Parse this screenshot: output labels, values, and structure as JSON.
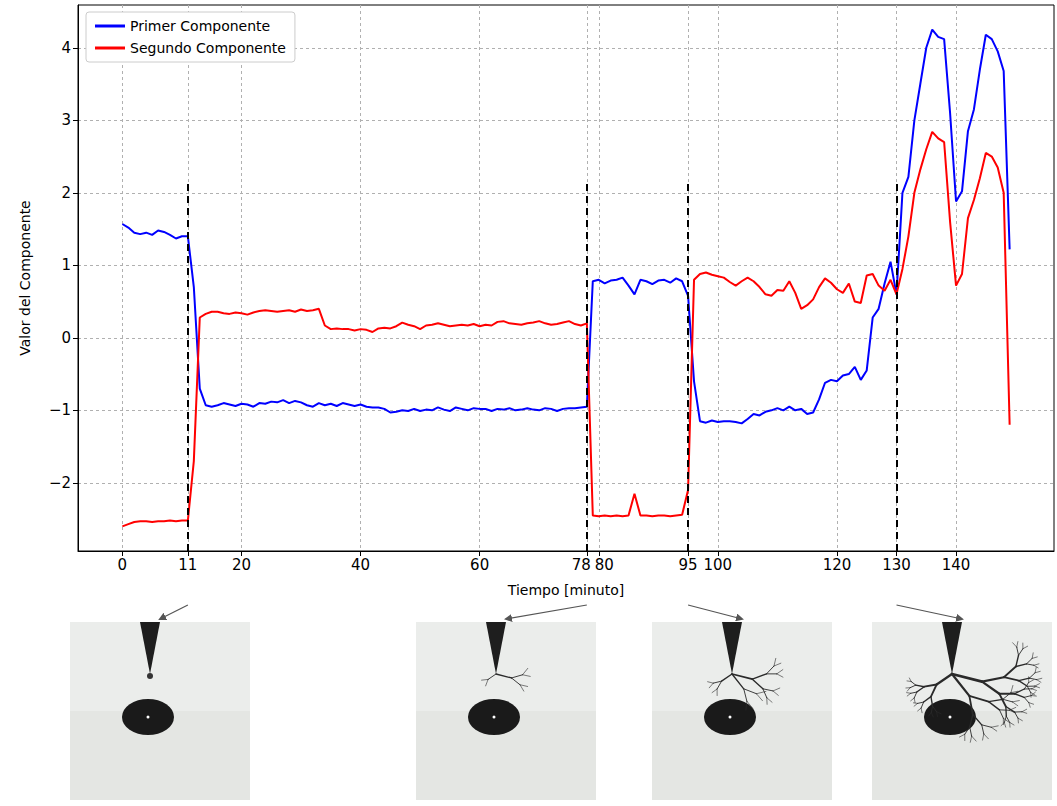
{
  "chart_data": {
    "type": "line",
    "x_label": "Tiempo [minuto]",
    "y_label": "Valor del Componente",
    "x": [
      0,
      1,
      2,
      3,
      4,
      5,
      6,
      7,
      8,
      9,
      10,
      11,
      12,
      13,
      14,
      15,
      16,
      17,
      18,
      19,
      20,
      21,
      22,
      23,
      24,
      25,
      26,
      27,
      28,
      29,
      30,
      31,
      32,
      33,
      34,
      35,
      36,
      37,
      38,
      39,
      40,
      41,
      42,
      43,
      44,
      45,
      46,
      47,
      48,
      49,
      50,
      51,
      52,
      53,
      54,
      55,
      56,
      57,
      58,
      59,
      60,
      61,
      62,
      63,
      64,
      65,
      66,
      67,
      68,
      69,
      70,
      71,
      72,
      73,
      74,
      75,
      76,
      77,
      78,
      79,
      80,
      81,
      82,
      83,
      84,
      85,
      86,
      87,
      88,
      89,
      90,
      91,
      92,
      93,
      94,
      95,
      96,
      97,
      98,
      99,
      100,
      101,
      102,
      103,
      104,
      105,
      106,
      107,
      108,
      109,
      110,
      111,
      112,
      113,
      114,
      115,
      116,
      117,
      118,
      119,
      120,
      121,
      122,
      123,
      124,
      125,
      126,
      127,
      128,
      129,
      130,
      131,
      132,
      133,
      134,
      135,
      136,
      137,
      138,
      139,
      140,
      141,
      142,
      143,
      144,
      145,
      146,
      147,
      148,
      149
    ],
    "series": [
      {
        "name": "Primer Componente",
        "color": "#0000ff",
        "values": [
          1.57,
          1.52,
          1.45,
          1.43,
          1.45,
          1.42,
          1.48,
          1.46,
          1.42,
          1.37,
          1.4,
          1.4,
          0.7,
          -0.7,
          -0.93,
          -0.95,
          -0.93,
          -0.9,
          -0.92,
          -0.94,
          -0.91,
          -0.92,
          -0.95,
          -0.9,
          -0.91,
          -0.88,
          -0.89,
          -0.86,
          -0.9,
          -0.87,
          -0.89,
          -0.93,
          -0.95,
          -0.9,
          -0.93,
          -0.91,
          -0.94,
          -0.9,
          -0.92,
          -0.94,
          -0.92,
          -0.95,
          -0.96,
          -0.96,
          -0.98,
          -1.03,
          -1.02,
          -1.0,
          -1.01,
          -0.98,
          -1.01,
          -0.99,
          -1.0,
          -0.96,
          -0.99,
          -1.01,
          -0.96,
          -0.98,
          -1.0,
          -0.97,
          -0.98,
          -0.98,
          -1.01,
          -0.98,
          -0.99,
          -0.97,
          -1.0,
          -0.99,
          -0.97,
          -0.99,
          -1.0,
          -0.97,
          -0.98,
          -1.01,
          -0.98,
          -0.97,
          -0.97,
          -0.96,
          -0.95,
          0.78,
          0.8,
          0.75,
          0.79,
          0.8,
          0.83,
          0.72,
          0.6,
          0.8,
          0.78,
          0.74,
          0.79,
          0.8,
          0.76,
          0.82,
          0.78,
          0.58,
          -0.6,
          -1.15,
          -1.17,
          -1.14,
          -1.16,
          -1.15,
          -1.15,
          -1.16,
          -1.18,
          -1.12,
          -1.05,
          -1.07,
          -1.02,
          -1.0,
          -0.97,
          -1.0,
          -0.95,
          -1.0,
          -0.98,
          -1.05,
          -1.03,
          -0.85,
          -0.62,
          -0.58,
          -0.6,
          -0.52,
          -0.5,
          -0.4,
          -0.58,
          -0.45,
          0.28,
          0.4,
          0.75,
          1.05,
          0.6,
          2.0,
          2.22,
          3.0,
          3.5,
          4.0,
          4.25,
          4.15,
          4.12,
          3.1,
          1.88,
          2.02,
          2.85,
          3.15,
          3.7,
          4.18,
          4.12,
          3.95,
          3.68,
          1.22
        ]
      },
      {
        "name": "Segundo Componente",
        "color": "#ff0000",
        "values": [
          -2.6,
          -2.57,
          -2.54,
          -2.53,
          -2.53,
          -2.54,
          -2.53,
          -2.53,
          -2.52,
          -2.53,
          -2.52,
          -2.52,
          -1.7,
          0.28,
          0.33,
          0.36,
          0.36,
          0.34,
          0.33,
          0.35,
          0.34,
          0.32,
          0.35,
          0.37,
          0.38,
          0.37,
          0.36,
          0.37,
          0.38,
          0.36,
          0.39,
          0.37,
          0.38,
          0.4,
          0.17,
          0.12,
          0.13,
          0.12,
          0.12,
          0.1,
          0.12,
          0.11,
          0.08,
          0.13,
          0.14,
          0.13,
          0.16,
          0.21,
          0.18,
          0.16,
          0.12,
          0.17,
          0.18,
          0.2,
          0.18,
          0.16,
          0.17,
          0.18,
          0.17,
          0.19,
          0.16,
          0.18,
          0.17,
          0.22,
          0.23,
          0.2,
          0.19,
          0.18,
          0.2,
          0.21,
          0.23,
          0.2,
          0.18,
          0.19,
          0.21,
          0.23,
          0.19,
          0.17,
          0.2,
          -2.45,
          -2.46,
          -2.45,
          -2.46,
          -2.45,
          -2.46,
          -2.45,
          -2.15,
          -2.45,
          -2.45,
          -2.46,
          -2.45,
          -2.45,
          -2.46,
          -2.45,
          -2.44,
          -2.1,
          0.8,
          0.88,
          0.9,
          0.87,
          0.85,
          0.83,
          0.77,
          0.72,
          0.78,
          0.83,
          0.78,
          0.7,
          0.6,
          0.58,
          0.66,
          0.65,
          0.78,
          0.62,
          0.4,
          0.45,
          0.53,
          0.7,
          0.82,
          0.76,
          0.67,
          0.62,
          0.75,
          0.5,
          0.48,
          0.86,
          0.88,
          0.72,
          0.65,
          0.8,
          0.6,
          0.95,
          1.4,
          2.0,
          2.32,
          2.6,
          2.84,
          2.75,
          2.7,
          1.6,
          0.72,
          0.88,
          1.65,
          1.9,
          2.2,
          2.55,
          2.5,
          2.35,
          2.0,
          -1.2
        ]
      }
    ],
    "xlim": [
      -7.45,
      156.45
    ],
    "xticks": [
      0,
      11,
      20,
      40,
      60,
      78,
      80,
      95,
      100,
      120,
      130,
      140
    ],
    "ylim": [
      -2.94,
      4.59
    ],
    "yticks": [
      {
        "value": -2,
        "label": "−2"
      },
      {
        "value": -1,
        "label": "−1"
      },
      0,
      1,
      2,
      3,
      4
    ],
    "vlines": [
      {
        "x": 11,
        "y": [
          -2.94,
          2.15
        ]
      },
      {
        "x": 78,
        "y": [
          -2.94,
          2.15
        ]
      },
      {
        "x": 95,
        "y": [
          -2.94,
          2.15
        ]
      },
      {
        "x": 130,
        "y": [
          -2.94,
          2.15
        ]
      }
    ],
    "grid": true,
    "legend": "upper left",
    "line_style": "solid"
  }
}
